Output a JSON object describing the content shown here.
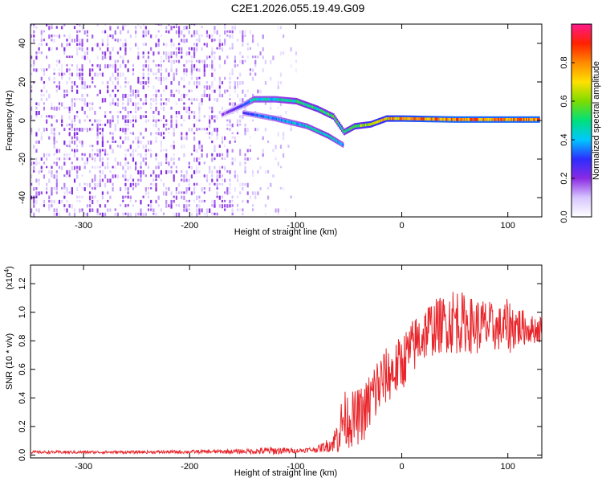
{
  "title": "C2E1.2026.055.19.49.G09",
  "chart_data": [
    {
      "type": "heatmap",
      "xlabel": "Height of straight line (km)",
      "ylabel": "Frequency (Hz)",
      "xlim": [
        -350,
        132
      ],
      "ylim": [
        -50,
        50
      ],
      "xticks": [
        -300,
        -200,
        -100,
        0,
        100
      ],
      "xtick_labels": [
        "-300",
        "-200",
        "-100",
        "0",
        "100"
      ],
      "yticks": [
        -40,
        -20,
        0,
        20,
        40
      ],
      "ytick_labels": [
        "-40",
        "-20",
        "0",
        "20",
        "40"
      ],
      "colorbar": {
        "label": "Normalized spectral amplitude",
        "range": [
          0,
          1
        ],
        "ticks": [
          0.0,
          0.2,
          0.4,
          0.6,
          0.8
        ],
        "tick_labels": [
          "0.0",
          "0.2",
          "0.4",
          "0.6",
          "0.8"
        ],
        "colors": [
          "#ffffff",
          "#d7c6ff",
          "#8a2be2",
          "#2c2cff",
          "#00c8ff",
          "#00e07a",
          "#7ddc00",
          "#ffe000",
          "#ff8a00",
          "#ff2000",
          "#ff1a8c"
        ]
      },
      "noise_region": {
        "x_from": -350,
        "x_to": -100,
        "amplitude": 0.15
      },
      "signal_track": [
        {
          "x": -170,
          "y": 3,
          "amplitude": 0.18
        },
        {
          "x": -150,
          "y": 8,
          "amplitude": 0.3
        },
        {
          "x": -140,
          "y": 11,
          "amplitude": 0.45
        },
        {
          "x": -120,
          "y": 11,
          "amplitude": 0.45
        },
        {
          "x": -100,
          "y": 10,
          "amplitude": 0.5
        },
        {
          "x": -80,
          "y": 6,
          "amplitude": 0.55
        },
        {
          "x": -65,
          "y": 2,
          "amplitude": 0.55
        },
        {
          "x": -55,
          "y": -6,
          "amplitude": 0.5
        },
        {
          "x": -45,
          "y": -3,
          "amplitude": 0.6
        },
        {
          "x": -30,
          "y": -2,
          "amplitude": 0.7
        },
        {
          "x": -15,
          "y": 1,
          "amplitude": 0.75
        },
        {
          "x": 0,
          "y": 1,
          "amplitude": 0.8
        },
        {
          "x": 50,
          "y": 0.5,
          "amplitude": 0.85
        },
        {
          "x": 130,
          "y": 0.5,
          "amplitude": 0.85
        }
      ],
      "signal_track_2": [
        {
          "x": -150,
          "y": 4,
          "amplitude": 0.3
        },
        {
          "x": -120,
          "y": 1,
          "amplitude": 0.4
        },
        {
          "x": -90,
          "y": -3,
          "amplitude": 0.45
        },
        {
          "x": -70,
          "y": -8,
          "amplitude": 0.5
        },
        {
          "x": -55,
          "y": -13,
          "amplitude": 0.4
        }
      ]
    },
    {
      "type": "line",
      "xlabel": "Height of straight line (km)",
      "ylabel": "SNR (10 * v/v)",
      "scale_label": "(x10",
      "scale_exp": "4",
      "scale_close": ")",
      "xlim": [
        -350,
        132
      ],
      "ylim": [
        -0.02,
        1.33
      ],
      "xticks": [
        -300,
        -200,
        -100,
        0,
        100
      ],
      "xtick_labels": [
        "-300",
        "-200",
        "-100",
        "0",
        "100"
      ],
      "yticks": [
        0.0,
        0.2,
        0.4,
        0.6,
        0.8,
        1.0,
        1.2
      ],
      "ytick_labels": [
        "0.0",
        "0.2",
        "0.4",
        "0.6",
        "0.8",
        "1.0",
        "1.2"
      ],
      "color": "#e8262b",
      "envelope": {
        "x": [
          -350,
          -250,
          -150,
          -120,
          -100,
          -80,
          -65,
          -60,
          -55,
          -45,
          -35,
          -25,
          -15,
          -5,
          5,
          15,
          25,
          40,
          50,
          60,
          70,
          80,
          90,
          100,
          110,
          120,
          132
        ],
        "mean": [
          0.02,
          0.02,
          0.025,
          0.03,
          0.03,
          0.04,
          0.08,
          0.15,
          0.25,
          0.25,
          0.3,
          0.45,
          0.55,
          0.6,
          0.7,
          0.8,
          0.88,
          0.92,
          0.95,
          0.92,
          0.9,
          0.9,
          0.88,
          0.9,
          0.9,
          0.88,
          0.88
        ],
        "spread": [
          0.01,
          0.01,
          0.015,
          0.03,
          0.015,
          0.02,
          0.06,
          0.15,
          0.2,
          0.2,
          0.2,
          0.25,
          0.2,
          0.2,
          0.2,
          0.2,
          0.2,
          0.2,
          0.25,
          0.2,
          0.2,
          0.2,
          0.15,
          0.2,
          0.15,
          0.1,
          0.1
        ]
      }
    }
  ]
}
